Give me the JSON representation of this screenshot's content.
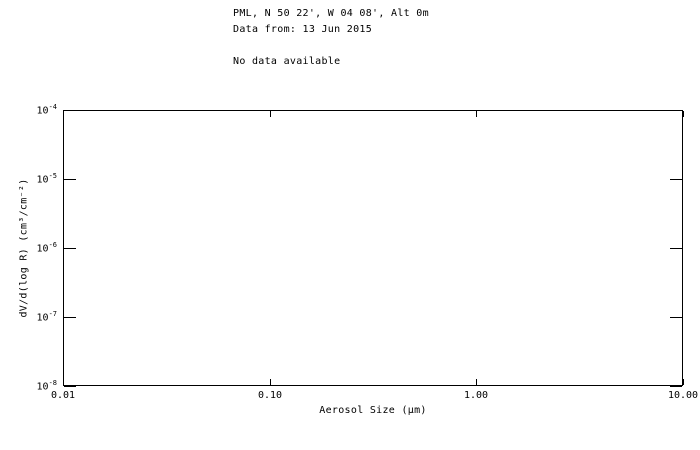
{
  "page": {
    "background_color": "#ffffff",
    "foreground_color": "#000000"
  },
  "header": {
    "site_line": "PML, N 50 22', W 04 08', Alt 0m",
    "date_line": "Data from: 13 Jun 2015",
    "status_message": "No data available"
  },
  "chart_data": {
    "type": "line",
    "title": "",
    "xlabel": "Aerosol Size (µm)",
    "ylabel": "dV/d(log R) (cm³/cm⁻²)",
    "x_scale": "log",
    "y_scale": "log",
    "xlim": [
      0.01,
      10.0
    ],
    "ylim": [
      1e-08,
      0.0001
    ],
    "x_ticks": [
      {
        "value": 0.01,
        "label": "0.01"
      },
      {
        "value": 0.1,
        "label": "0.10"
      },
      {
        "value": 1.0,
        "label": "1.00"
      },
      {
        "value": 10.0,
        "label": "10.00"
      }
    ],
    "y_ticks": [
      {
        "value": 0.0001,
        "mantissa": "10",
        "exponent": "-4"
      },
      {
        "value": 1e-05,
        "mantissa": "10",
        "exponent": "-5"
      },
      {
        "value": 1e-06,
        "mantissa": "10",
        "exponent": "-6"
      },
      {
        "value": 1e-07,
        "mantissa": "10",
        "exponent": "-7"
      },
      {
        "value": 1e-08,
        "mantissa": "10",
        "exponent": "-8"
      }
    ],
    "series": [],
    "grid": false,
    "legend": null,
    "frame": true,
    "tick_direction": "in",
    "note": "Plot area is empty — no data points plotted"
  }
}
